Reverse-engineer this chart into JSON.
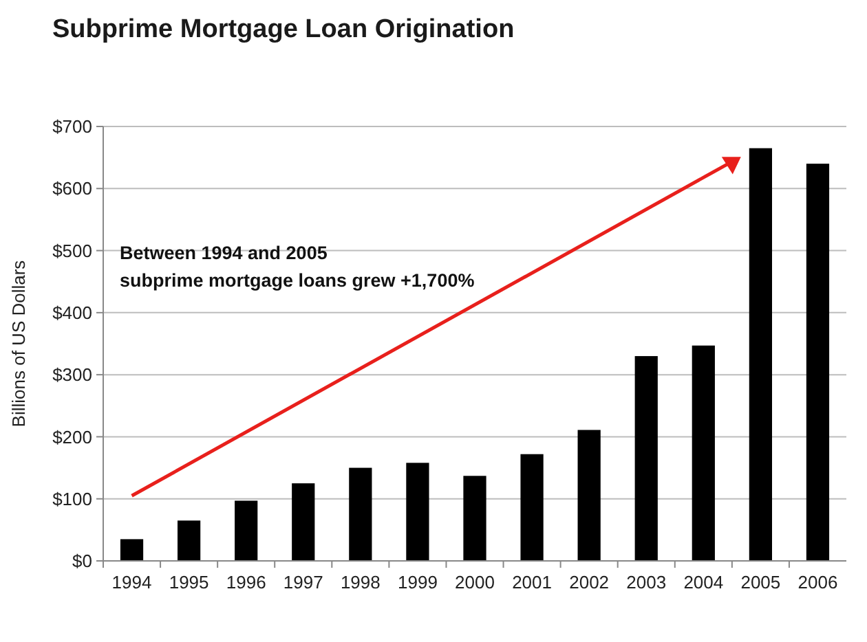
{
  "chart_data": {
    "type": "bar",
    "title": "Subprime Mortgage Loan Origination",
    "ylabel": "Billions of US Dollars",
    "categories": [
      "1994",
      "1995",
      "1996",
      "1997",
      "1998",
      "1999",
      "2000",
      "2001",
      "2002",
      "2003",
      "2004",
      "2005",
      "2006"
    ],
    "values": [
      35,
      65,
      97,
      125,
      150,
      158,
      137,
      172,
      211,
      330,
      347,
      665,
      640
    ],
    "color": "#000000",
    "ylim": [
      0,
      700
    ],
    "yticks": [
      {
        "value": 0,
        "label": "$0"
      },
      {
        "value": 100,
        "label": "$100"
      },
      {
        "value": 200,
        "label": "$200"
      },
      {
        "value": 300,
        "label": "$300"
      },
      {
        "value": 400,
        "label": "$400"
      },
      {
        "value": 500,
        "label": "$500"
      },
      {
        "value": 600,
        "label": "$600"
      },
      {
        "value": 700,
        "label": "$700"
      }
    ],
    "grid": "y",
    "annotations": [
      "Between 1994 and 2005\nsubprime mortgage loans grew +1,700%"
    ]
  }
}
